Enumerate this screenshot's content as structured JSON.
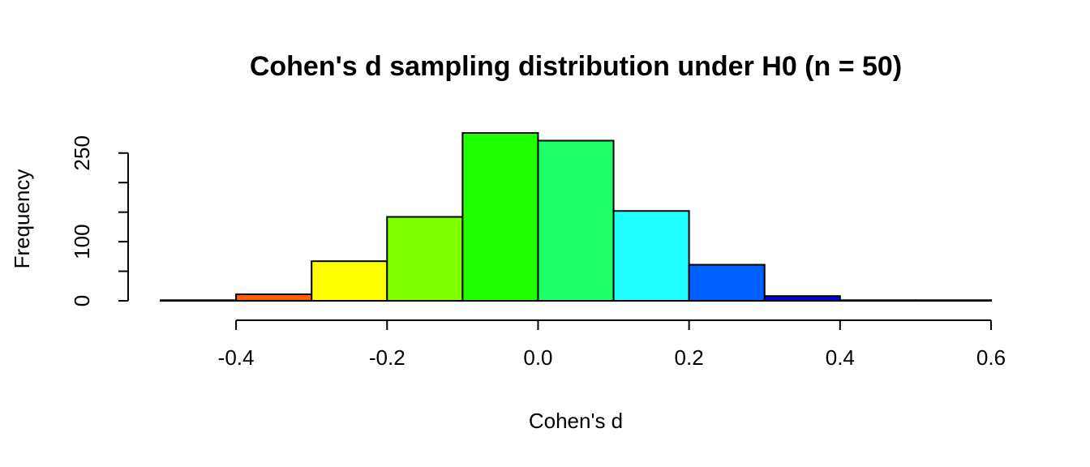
{
  "chart_data": {
    "type": "bar",
    "title": "Cohen's d sampling distribution under H0 (n = 50)",
    "xlabel": "Cohen's d",
    "ylabel": "Frequency",
    "bins": [
      {
        "start": -0.5,
        "end": -0.4,
        "count": 1,
        "color": "#FF0000"
      },
      {
        "start": -0.4,
        "end": -0.3,
        "count": 11,
        "color": "#FF5F00"
      },
      {
        "start": -0.3,
        "end": -0.2,
        "count": 67,
        "color": "#FFFF00"
      },
      {
        "start": -0.2,
        "end": -0.1,
        "count": 142,
        "color": "#7FFF00"
      },
      {
        "start": -0.1,
        "end": 0.0,
        "count": 284,
        "color": "#20FF00"
      },
      {
        "start": 0.0,
        "end": 0.1,
        "count": 271,
        "color": "#20FF6A"
      },
      {
        "start": 0.1,
        "end": 0.2,
        "count": 152,
        "color": "#20FFFF"
      },
      {
        "start": 0.2,
        "end": 0.3,
        "count": 61,
        "color": "#0060FF"
      },
      {
        "start": 0.3,
        "end": 0.4,
        "count": 8,
        "color": "#0000DD"
      },
      {
        "start": 0.4,
        "end": 0.5,
        "count": 1,
        "color": "#4000FF"
      },
      {
        "start": 0.5,
        "end": 0.6,
        "count": 1,
        "color": "#A000FF"
      }
    ],
    "xticks": [
      -0.4,
      -0.2,
      0.0,
      0.2,
      0.4,
      0.6
    ],
    "xtick_labels": [
      "-0.4",
      "-0.2",
      "0.0",
      "0.2",
      "0.4",
      "0.6"
    ],
    "yticks": [
      0,
      50,
      100,
      150,
      200,
      250
    ],
    "ytick_labels": [
      "0",
      "",
      "100",
      "",
      "",
      "250"
    ],
    "xlim": [
      -0.5,
      0.6
    ],
    "ylim": [
      0,
      290
    ],
    "grid": false,
    "legend": "none"
  }
}
